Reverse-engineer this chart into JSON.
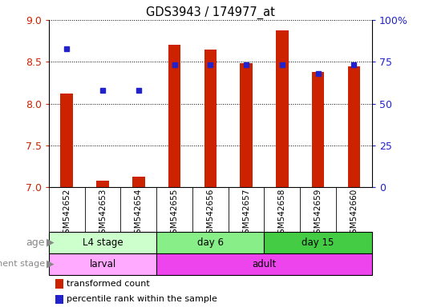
{
  "title": "GDS3943 / 174977_at",
  "samples": [
    "GSM542652",
    "GSM542653",
    "GSM542654",
    "GSM542655",
    "GSM542656",
    "GSM542657",
    "GSM542658",
    "GSM542659",
    "GSM542660"
  ],
  "transformed_counts": [
    8.12,
    7.08,
    7.13,
    8.7,
    8.65,
    8.48,
    8.88,
    8.38,
    8.45
  ],
  "percentile_ranks": [
    83,
    58,
    58,
    73,
    73,
    73,
    73,
    68,
    73
  ],
  "ylim_left": [
    7.0,
    9.0
  ],
  "ylim_right": [
    0,
    100
  ],
  "yticks_left": [
    7.0,
    7.5,
    8.0,
    8.5,
    9.0
  ],
  "yticks_right": [
    0,
    25,
    50,
    75,
    100
  ],
  "ytick_labels_right": [
    "0",
    "25",
    "50",
    "75",
    "100%"
  ],
  "bar_color": "#CC2200",
  "dot_color": "#2222CC",
  "bar_bottom": 7.0,
  "bar_width": 0.35,
  "groups_age": [
    {
      "label": "L4 stage",
      "start": 0,
      "end": 3,
      "color": "#CCFFCC"
    },
    {
      "label": "day 6",
      "start": 3,
      "end": 6,
      "color": "#88EE88"
    },
    {
      "label": "day 15",
      "start": 6,
      "end": 9,
      "color": "#44CC44"
    }
  ],
  "groups_dev": [
    {
      "label": "larval",
      "start": 0,
      "end": 3,
      "color": "#FFAAFF"
    },
    {
      "label": "adult",
      "start": 3,
      "end": 9,
      "color": "#EE44EE"
    }
  ],
  "legend_items": [
    {
      "label": "transformed count",
      "color": "#CC2200"
    },
    {
      "label": "percentile rank within the sample",
      "color": "#2222CC"
    }
  ],
  "tick_color_left": "#CC2200",
  "tick_color_right": "#2222CC",
  "xtick_bg": "#DDDDDD",
  "left_label_color": "#888888"
}
